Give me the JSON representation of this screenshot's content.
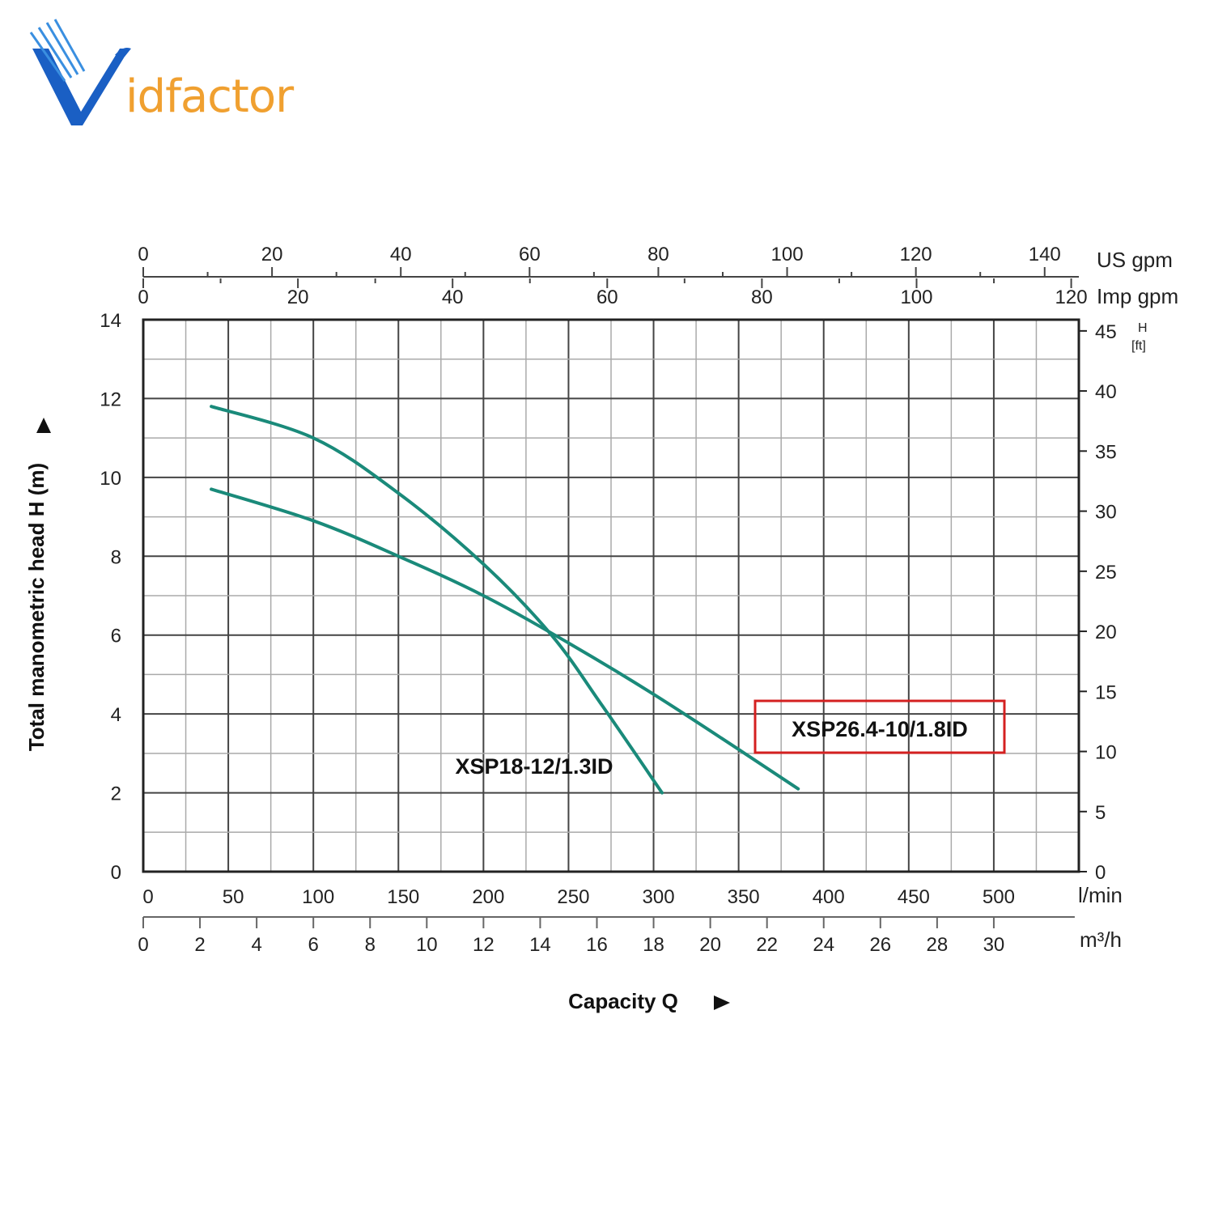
{
  "logo": {
    "text": "idfactor",
    "icon": "bird-v-icon",
    "colors": {
      "blue": "#1a5fc4",
      "orange": "#f0a030"
    }
  },
  "chart_data": {
    "type": "line",
    "xlabel": "Capacity Q",
    "ylabel": "Total manometric head H (m)",
    "xlim": [
      0,
      550
    ],
    "ylim": [
      0,
      14
    ],
    "grid": true,
    "y_ticks": [
      0,
      2,
      4,
      6,
      8,
      10,
      12,
      14
    ],
    "y_right_label_lines": [
      "H",
      "[ft]"
    ],
    "y_right_ticks": [
      0,
      5,
      10,
      15,
      20,
      25,
      30,
      35,
      40,
      45
    ],
    "x_unit_lmin": "l/min",
    "x_ticks_lmin": [
      0,
      50,
      100,
      150,
      200,
      250,
      300,
      350,
      400,
      450,
      500
    ],
    "x_unit_m3h": "m³/h",
    "x_ticks_m3h": [
      0,
      2,
      4,
      6,
      8,
      10,
      12,
      14,
      16,
      18,
      20,
      22,
      24,
      26,
      28,
      30
    ],
    "top_unit_us": "US gpm",
    "top_ticks_us": [
      0,
      20,
      40,
      60,
      80,
      100,
      120,
      140
    ],
    "top_unit_imp": "Imp gpm",
    "top_ticks_imp": [
      0,
      20,
      40,
      60,
      80,
      100,
      120
    ],
    "series": [
      {
        "name": "XSP18-12/1.3ID",
        "color": "#1a8a7a",
        "x": [
          40,
          100,
          150,
          200,
          240,
          270,
          305
        ],
        "y": [
          11.8,
          11.0,
          9.6,
          7.8,
          6.0,
          4.2,
          2.0
        ]
      },
      {
        "name": "XSP26.4-10/1.8ID",
        "color": "#1a8a7a",
        "highlighted": true,
        "x": [
          40,
          100,
          150,
          200,
          250,
          300,
          350,
          385
        ],
        "y": [
          9.7,
          8.9,
          8.0,
          7.0,
          5.8,
          4.5,
          3.1,
          2.1
        ]
      }
    ],
    "highlight_color": "#d42020"
  }
}
